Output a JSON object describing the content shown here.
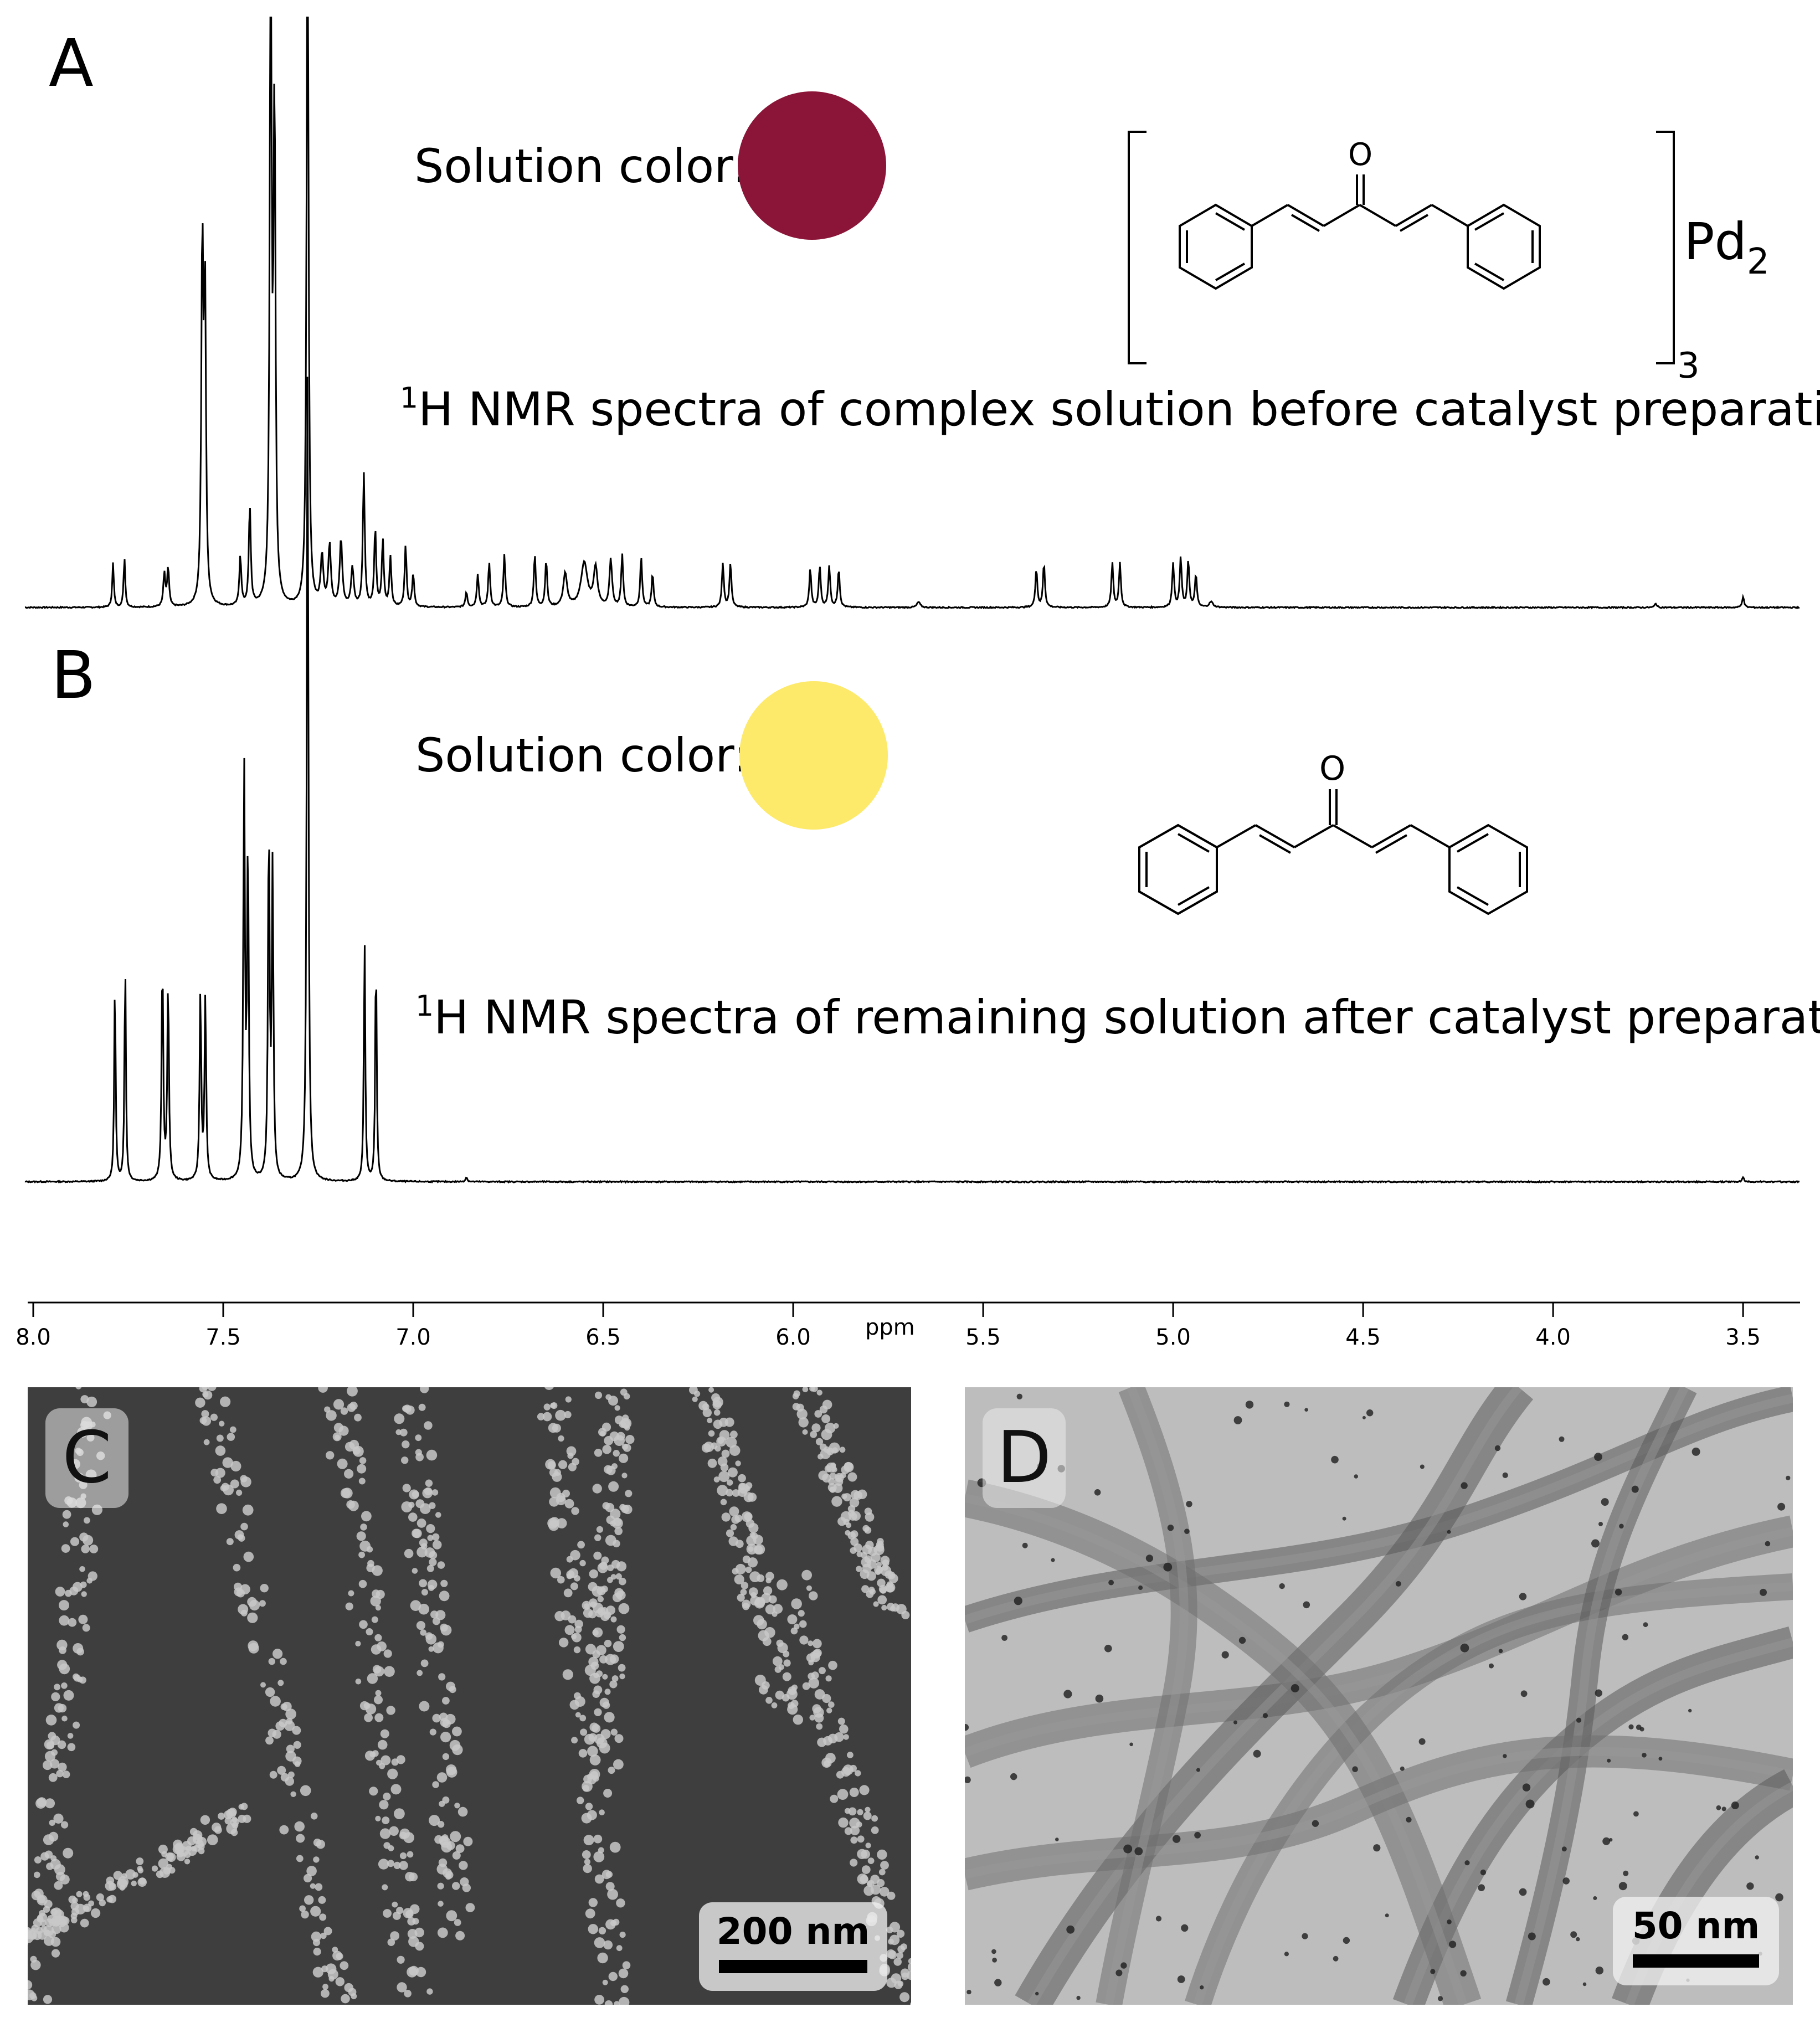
{
  "panels": {
    "A": {
      "letter": "A",
      "color_label": "Solution color:",
      "color": "#8b1538",
      "caption_sup": "1",
      "caption_text": "H NMR spectra of complex solution before catalyst preparation",
      "structure_labels": {
        "oxygen": "O",
        "metal": "Pd",
        "metal_sub": "2",
        "bracket_sub": "3"
      }
    },
    "B": {
      "letter": "B",
      "color_label": "Solution color:",
      "color": "#fde96a",
      "caption_sup": "1",
      "caption_text": "H NMR spectra of remaining solution after catalyst preparation",
      "structure_labels": {
        "oxygen": "O"
      }
    },
    "C": {
      "letter": "C",
      "scalebar": "200 nm",
      "image": "SEM micrograph"
    },
    "D": {
      "letter": "D",
      "scalebar": "50 nm",
      "image": "TEM micrograph"
    }
  },
  "axis": {
    "unit_label": "ppm",
    "ticks": [
      "8.0",
      "7.5",
      "7.0",
      "6.5",
      "6.0",
      "5.5",
      "5.0",
      "4.5",
      "4.0",
      "3.5"
    ]
  },
  "chart_data": [
    {
      "type": "line",
      "series": [
        {
          "name": "A",
          "peaks_ppm": [
            7.79,
            7.76,
            7.65,
            7.64,
            7.56,
            7.55,
            7.45,
            7.43,
            7.37,
            7.36,
            7.28,
            7.13,
            7.09,
            7.02,
            6.85,
            6.82,
            6.79,
            6.75,
            6.67,
            6.64,
            6.57,
            6.52,
            6.48,
            6.45,
            6.39,
            6.37,
            6.18,
            6.16,
            5.95,
            5.93,
            5.91,
            5.89,
            5.36,
            5.34,
            5.16,
            5.14,
            5.0,
            4.98,
            4.96
          ]
        }
      ],
      "x_range_ppm": [
        8.0,
        3.35
      ],
      "xlabel": "ppm"
    },
    {
      "type": "line",
      "series": [
        {
          "name": "B",
          "peaks_ppm": [
            7.79,
            7.76,
            7.66,
            7.64,
            7.56,
            7.55,
            7.44,
            7.43,
            7.38,
            7.36,
            7.28,
            7.13,
            7.1
          ]
        }
      ],
      "x_range_ppm": [
        8.0,
        3.35
      ],
      "xlabel": "ppm"
    }
  ]
}
